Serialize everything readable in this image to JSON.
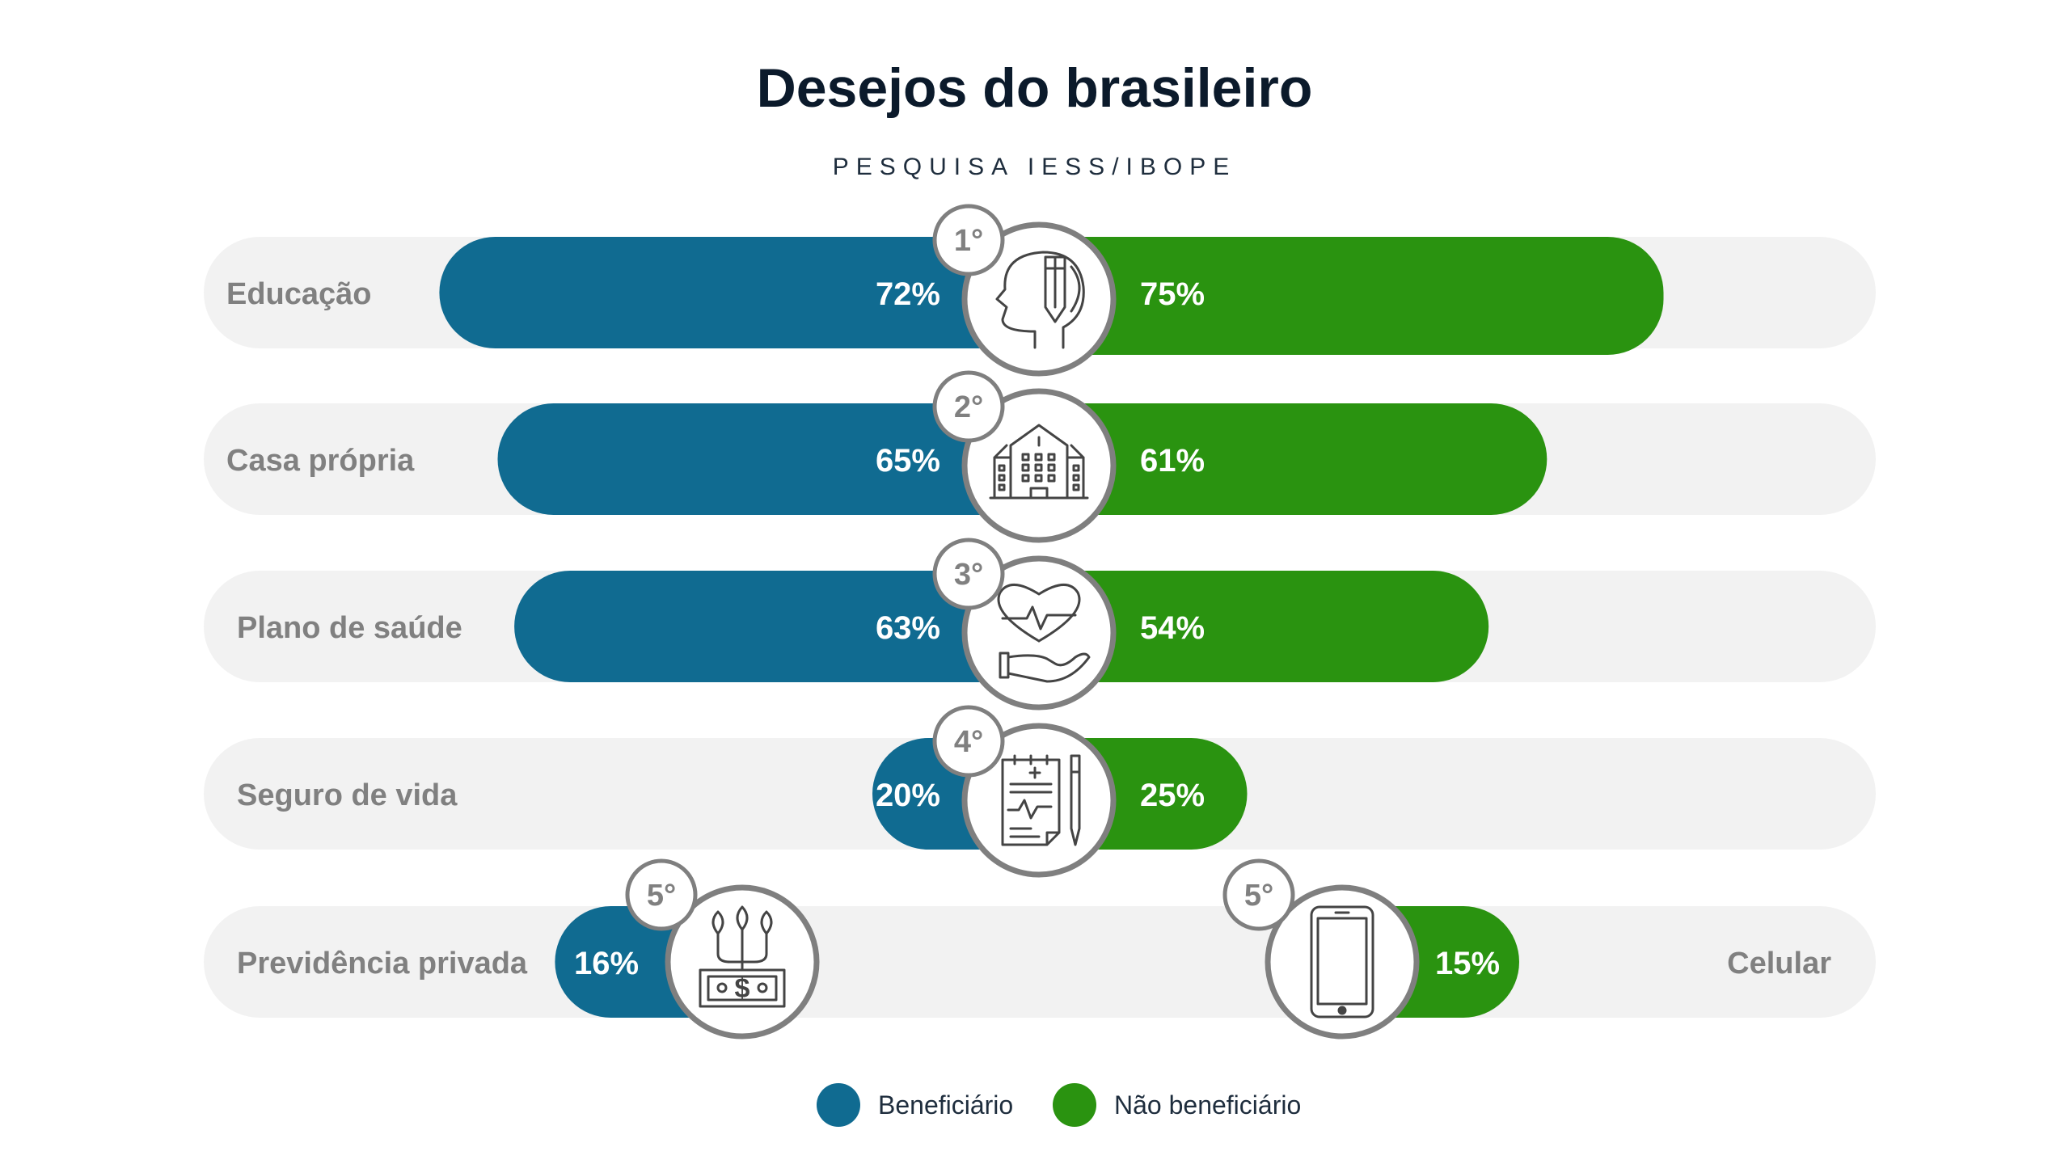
{
  "title": "Desejos do brasileiro",
  "subtitle": "PESQUISA IESS/IBOPE",
  "colors": {
    "beneficiario": "#106b91",
    "nao_beneficiario": "#2a9310",
    "track": "#f2f2f2",
    "label": "#808080",
    "ring": "#7f7f7f"
  },
  "legend": [
    {
      "name": "Beneficiário",
      "color": "#106b91"
    },
    {
      "name": "Não beneficiário",
      "color": "#2a9310"
    }
  ],
  "chart_data": {
    "type": "bar",
    "orientation": "diverging-horizontal",
    "xlim": [
      0,
      100
    ],
    "unit": "%",
    "categories": [
      "Educação",
      "Casa própria",
      "Plano de saúde",
      "Seguro de vida",
      "Previdência privada",
      "Celular"
    ],
    "series": [
      {
        "name": "Beneficiário",
        "values": [
          72,
          65,
          63,
          20,
          16,
          null
        ]
      },
      {
        "name": "Não beneficiário",
        "values": [
          75,
          61,
          54,
          25,
          null,
          15
        ]
      }
    ],
    "data_labels": {
      "beneficiario": [
        "72%",
        "65%",
        "63%",
        "20%",
        "16%",
        ""
      ],
      "nao_beneficiario": [
        "75%",
        "61%",
        "54%",
        "25%",
        "",
        "15%"
      ]
    },
    "ranks": [
      "1°",
      "2°",
      "3°",
      "4°",
      "5°",
      "5°"
    ],
    "icons": [
      "head-pencil-icon",
      "building-icon",
      "heart-hand-icon",
      "clipboard-pen-icon",
      "money-plant-icon",
      "smartphone-icon"
    ],
    "legend_position": "bottom-center"
  }
}
